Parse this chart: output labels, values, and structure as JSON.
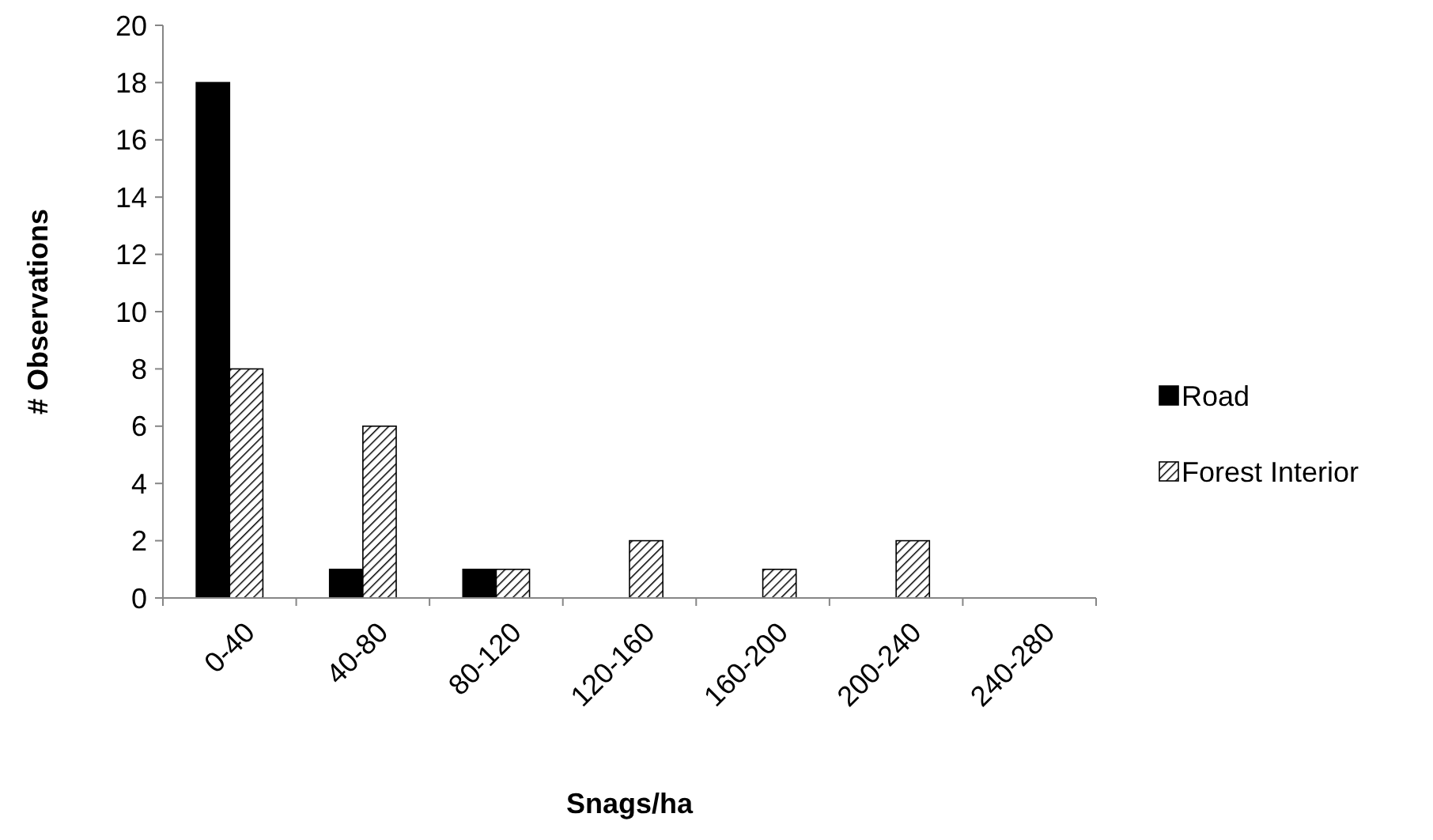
{
  "chart_data": {
    "type": "bar",
    "xlabel": "Snags/ha",
    "ylabel": "# Observations",
    "categories": [
      "0-40",
      "40-80",
      "80-120",
      "120-160",
      "160-200",
      "200-240",
      "240-280"
    ],
    "series": [
      {
        "name": "Road",
        "color": "#000000",
        "values": [
          18,
          1,
          1,
          0,
          0,
          0,
          0
        ]
      },
      {
        "name": "Forest Interior",
        "color": "#000000",
        "values": [
          8,
          6,
          1,
          2,
          1,
          2,
          0
        ]
      }
    ],
    "ylim": [
      0,
      20
    ],
    "yticks": [
      0,
      2,
      4,
      6,
      8,
      10,
      12,
      14,
      16,
      18,
      20
    ],
    "grid": false,
    "legend": "right"
  }
}
